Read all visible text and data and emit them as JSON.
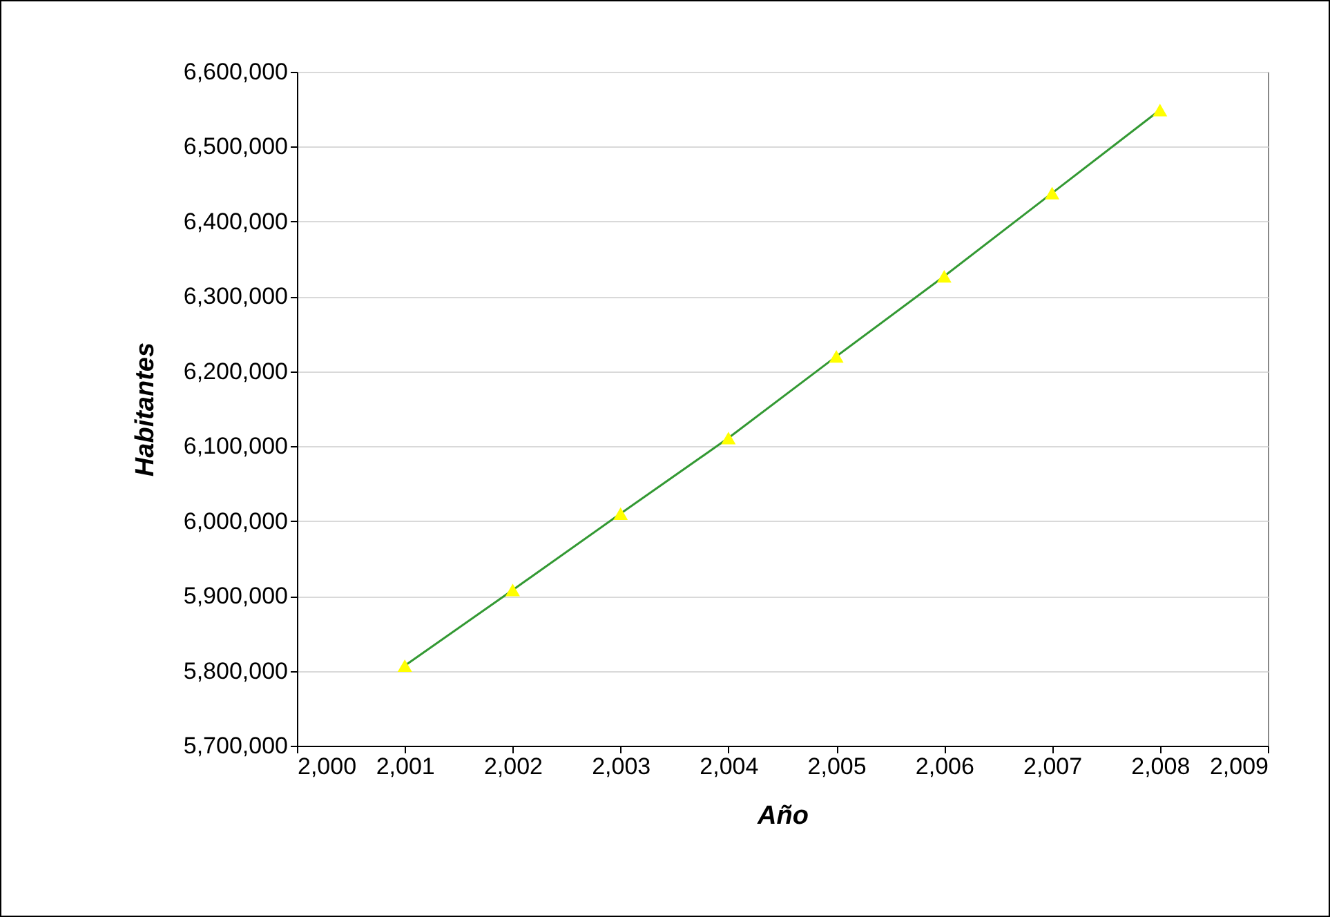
{
  "chart_data": {
    "type": "line",
    "xlabel": "Año",
    "ylabel": "Habitantes",
    "x": [
      2001,
      2002,
      2003,
      2004,
      2005,
      2006,
      2007,
      2008
    ],
    "series": [
      {
        "color": "#339933",
        "marker": "none",
        "values": [
          5807000,
          5908000,
          6010000,
          6111000,
          6220000,
          6327000,
          6438000,
          6549000
        ]
      },
      {
        "type": "scatter",
        "color": "#ffff00",
        "marker": "triangle",
        "values": [
          5807000,
          5908000,
          6010000,
          6111000,
          6220000,
          6327000,
          6438000,
          6549000
        ]
      }
    ],
    "xlim": [
      2000,
      2009
    ],
    "xticks": [
      {
        "value": 2000,
        "label": "2,000"
      },
      {
        "value": 2001,
        "label": "2,001"
      },
      {
        "value": 2002,
        "label": "2,002"
      },
      {
        "value": 2003,
        "label": "2,003"
      },
      {
        "value": 2004,
        "label": "2,004"
      },
      {
        "value": 2005,
        "label": "2,005"
      },
      {
        "value": 2006,
        "label": "2,006"
      },
      {
        "value": 2007,
        "label": "2,007"
      },
      {
        "value": 2008,
        "label": "2,008"
      },
      {
        "value": 2009,
        "label": "2,009"
      }
    ],
    "ylim": [
      5700000,
      6600000
    ],
    "yticks": [
      {
        "value": 5700000,
        "label": "5,700,000"
      },
      {
        "value": 5800000,
        "label": "5,800,000"
      },
      {
        "value": 5900000,
        "label": "5,900,000"
      },
      {
        "value": 6000000,
        "label": "6,000,000"
      },
      {
        "value": 6100000,
        "label": "6,100,000"
      },
      {
        "value": 6200000,
        "label": "6,200,000"
      },
      {
        "value": 6300000,
        "label": "6,300,000"
      },
      {
        "value": 6400000,
        "label": "6,400,000"
      },
      {
        "value": 6500000,
        "label": "6,500,000"
      },
      {
        "value": 6600000,
        "label": "6,600,000"
      }
    ],
    "grid": "y"
  }
}
